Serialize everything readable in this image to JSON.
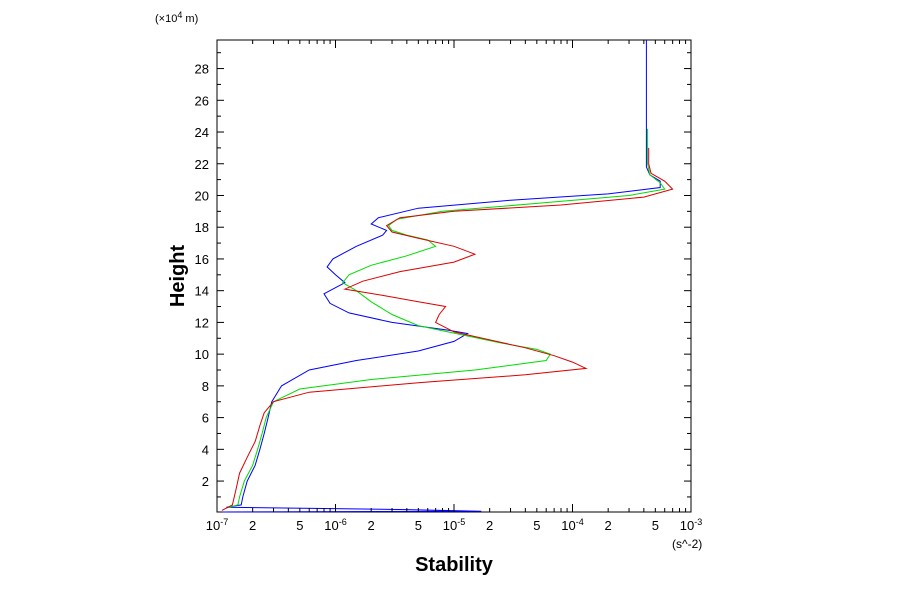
{
  "chart_data": {
    "type": "line",
    "xscale": "log",
    "xlabel": "Stability",
    "ylabel": "Height",
    "x_unit": "(s^-2)",
    "y_unit_prefix": "(×10",
    "y_unit_exp": "4",
    "y_unit_suffix": " m)",
    "xlim": [
      1e-07,
      0.001
    ],
    "ylim": [
      0.05,
      29.8
    ],
    "ytick_labels": [
      "2",
      "4",
      "6",
      "8",
      "10",
      "12",
      "14",
      "16",
      "18",
      "20",
      "22",
      "24",
      "26",
      "28"
    ],
    "xtick_labels": [
      {
        "value": 1e-07,
        "base": "10",
        "exp": "-7"
      },
      {
        "value": 2e-07,
        "base": "2",
        "exp": ""
      },
      {
        "value": 5e-07,
        "base": "5",
        "exp": ""
      },
      {
        "value": 1e-06,
        "base": "10",
        "exp": "-6"
      },
      {
        "value": 2e-06,
        "base": "2",
        "exp": ""
      },
      {
        "value": 5e-06,
        "base": "5",
        "exp": ""
      },
      {
        "value": 1e-05,
        "base": "10",
        "exp": "-5"
      },
      {
        "value": 2e-05,
        "base": "2",
        "exp": ""
      },
      {
        "value": 5e-05,
        "base": "5",
        "exp": ""
      },
      {
        "value": 0.0001,
        "base": "10",
        "exp": "-4"
      },
      {
        "value": 0.0002,
        "base": "2",
        "exp": ""
      },
      {
        "value": 0.0005,
        "base": "5",
        "exp": ""
      },
      {
        "value": 0.001,
        "base": "10",
        "exp": "-3"
      }
    ],
    "grid": false,
    "series": [
      {
        "color": "#0000ff",
        "points": [
          [
            1.1e-07,
            0.05
          ],
          [
            1.7e-05,
            0.1
          ],
          [
            4e-06,
            0.2
          ],
          [
            1.2e-07,
            0.35
          ],
          [
            1.6e-07,
            0.5
          ],
          [
            1.65e-07,
            1
          ],
          [
            1.8e-07,
            2
          ],
          [
            2.1e-07,
            3
          ],
          [
            2.3e-07,
            4
          ],
          [
            2.5e-07,
            5
          ],
          [
            2.7e-07,
            6
          ],
          [
            2.9e-07,
            7
          ],
          [
            3.5e-07,
            8
          ],
          [
            6e-07,
            9
          ],
          [
            1.5e-06,
            9.6
          ],
          [
            5e-06,
            10.2
          ],
          [
            1e-05,
            10.8
          ],
          [
            1.3e-05,
            11.3
          ],
          [
            9e-06,
            11.5
          ],
          [
            3e-06,
            12
          ],
          [
            1.3e-06,
            12.6
          ],
          [
            9e-07,
            13.2
          ],
          [
            8e-07,
            13.8
          ],
          [
            9.5e-07,
            14.1
          ],
          [
            1.2e-06,
            14.5
          ],
          [
            1e-06,
            15
          ],
          [
            8.5e-07,
            15.5
          ],
          [
            9.5e-07,
            16
          ],
          [
            1.5e-06,
            16.8
          ],
          [
            2.5e-06,
            17.5
          ],
          [
            2.7e-06,
            17.8
          ],
          [
            2e-06,
            18.2
          ],
          [
            2.3e-06,
            18.6
          ],
          [
            5e-06,
            19.2
          ],
          [
            3e-05,
            19.7
          ],
          [
            0.0002,
            20.1
          ],
          [
            0.00055,
            20.5
          ],
          [
            0.00055,
            20.9
          ],
          [
            0.00045,
            21.3
          ],
          [
            0.00042,
            21.8
          ],
          [
            0.00042,
            22.5
          ],
          [
            0.00042,
            24
          ],
          [
            0.00042,
            26
          ],
          [
            0.00042,
            28
          ],
          [
            0.00042,
            29.8
          ]
        ]
      },
      {
        "color": "#00dd00",
        "points": [
          [
            1.2e-07,
            0.3
          ],
          [
            1.5e-07,
            0.5
          ],
          [
            1.55e-07,
            1
          ],
          [
            1.7e-07,
            2
          ],
          [
            2e-07,
            3
          ],
          [
            2.2e-07,
            4
          ],
          [
            2.4e-07,
            5
          ],
          [
            2.6e-07,
            6
          ],
          [
            3e-07,
            7
          ],
          [
            5e-07,
            7.8
          ],
          [
            2e-06,
            8.4
          ],
          [
            1.5e-05,
            9
          ],
          [
            6e-05,
            9.6
          ],
          [
            6.5e-05,
            10
          ],
          [
            5e-05,
            10.3
          ],
          [
            2.5e-05,
            10.7
          ],
          [
            1.2e-05,
            11.2
          ],
          [
            5e-06,
            11.8
          ],
          [
            3e-06,
            12.5
          ],
          [
            2e-06,
            13.3
          ],
          [
            1.5e-06,
            14
          ],
          [
            1.15e-06,
            14.5
          ],
          [
            1.3e-06,
            15
          ],
          [
            2e-06,
            15.6
          ],
          [
            4e-06,
            16.2
          ],
          [
            7e-06,
            16.8
          ],
          [
            6e-06,
            17.2
          ],
          [
            4e-06,
            17.5
          ],
          [
            3e-06,
            17.8
          ],
          [
            2.8e-06,
            18.1
          ],
          [
            3.3e-06,
            18.5
          ],
          [
            8e-06,
            19
          ],
          [
            5e-05,
            19.5
          ],
          [
            0.0003,
            20
          ],
          [
            0.0006,
            20.4
          ],
          [
            0.00055,
            20.8
          ],
          [
            0.00045,
            21.3
          ],
          [
            0.00043,
            22
          ],
          [
            0.00043,
            23
          ],
          [
            0.00043,
            24.2
          ]
        ]
      },
      {
        "color": "#dd0000",
        "points": [
          [
            1.1e-07,
            0.15
          ],
          [
            1.35e-07,
            0.5
          ],
          [
            1.45e-07,
            1.5
          ],
          [
            1.55e-07,
            2.5
          ],
          [
            1.8e-07,
            3.5
          ],
          [
            2.1e-07,
            4.5
          ],
          [
            2.3e-07,
            5.5
          ],
          [
            2.5e-07,
            6.3
          ],
          [
            3e-07,
            7
          ],
          [
            6e-07,
            7.6
          ],
          [
            5e-06,
            8.2
          ],
          [
            4e-05,
            8.7
          ],
          [
            0.00013,
            9.1
          ],
          [
            0.0001,
            9.5
          ],
          [
            7e-05,
            9.9
          ],
          [
            4e-05,
            10.4
          ],
          [
            2e-05,
            10.9
          ],
          [
            1e-05,
            11.4
          ],
          [
            7e-06,
            12
          ],
          [
            7.5e-06,
            12.5
          ],
          [
            8.5e-06,
            13
          ],
          [
            5e-06,
            13.3
          ],
          [
            2.5e-06,
            13.7
          ],
          [
            1.2e-06,
            14.1
          ],
          [
            1.7e-06,
            14.6
          ],
          [
            3.5e-06,
            15.2
          ],
          [
            1e-05,
            15.8
          ],
          [
            1.5e-05,
            16.3
          ],
          [
            1e-05,
            16.8
          ],
          [
            5e-06,
            17.3
          ],
          [
            3e-06,
            17.7
          ],
          [
            2.7e-06,
            18.1
          ],
          [
            3.5e-06,
            18.6
          ],
          [
            1e-05,
            19
          ],
          [
            8e-05,
            19.4
          ],
          [
            0.0004,
            19.9
          ],
          [
            0.0007,
            20.4
          ],
          [
            0.0006,
            20.9
          ],
          [
            0.00046,
            21.4
          ],
          [
            0.00044,
            22
          ],
          [
            0.00044,
            23
          ]
        ]
      }
    ]
  }
}
